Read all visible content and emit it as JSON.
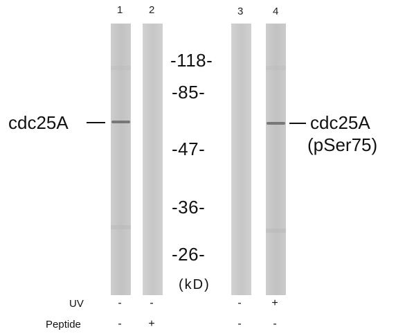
{
  "lanes": [
    {
      "number": "1",
      "uv": "-",
      "peptide": "-"
    },
    {
      "number": "2",
      "uv": "-",
      "peptide": "+"
    },
    {
      "number": "3",
      "uv": "-",
      "peptide": "-"
    },
    {
      "number": "4",
      "uv": "+",
      "peptide": "-"
    }
  ],
  "markers": [
    "-118-",
    "-85-",
    "-47-",
    "-36-",
    "-26-"
  ],
  "unit": "(kD)",
  "band_left": {
    "label": "cdc25A"
  },
  "band_right": {
    "label": "cdc25A",
    "sublabel": "(pSer75)"
  },
  "rows": {
    "uv": "UV",
    "peptide": "Peptide"
  }
}
